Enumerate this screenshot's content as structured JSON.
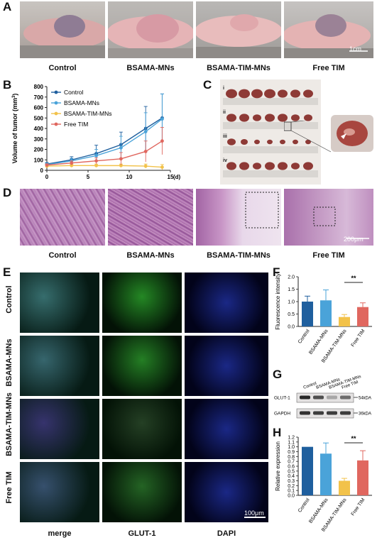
{
  "panels": {
    "A": "A",
    "B": "B",
    "C": "C",
    "D": "D",
    "E": "E",
    "F": "F",
    "G": "G",
    "H": "H"
  },
  "panel_a": {
    "captions": [
      "Control",
      "BSAMA-MNs",
      "BSAMA-TIM-MNs",
      "Free TIM"
    ],
    "scale_bar": "1cm"
  },
  "panel_b": {
    "ylabel_main": "Volume of tumor (mm",
    "ylabel_sup": "3",
    "ylabel_end": ")",
    "x_unit": "(d)"
  },
  "panel_c": {
    "row_labels": [
      "i",
      "ii",
      "iii",
      "iv"
    ]
  },
  "panel_d": {
    "captions": [
      "Control",
      "BSAMA-MNs",
      "BSAMA-TIM-MNs",
      "Free TIM"
    ],
    "scale_bar": "200μm"
  },
  "panel_e": {
    "row_labels": [
      "Control",
      "BSAMA-MNs",
      "BSAMA-TIM-MNs",
      "Free TIM"
    ],
    "col_labels": [
      "merge",
      "GLUT-1",
      "DAPI"
    ],
    "scale_bar": "100μm"
  },
  "panel_g": {
    "lanes": [
      "Control",
      "BSAMA-MNs",
      "BSAMA-TIM-MNs",
      "Free TIM"
    ],
    "bands": [
      "GLUT-1",
      "GAPDH"
    ],
    "sizes": [
      "54kDA",
      "36kDA"
    ]
  },
  "colors": {
    "control": "#1f5f9e",
    "bsama": "#4aa3d9",
    "bsama_tim": "#f2c24a",
    "free_tim": "#e0675f"
  },
  "chart_data": [
    {
      "type": "line",
      "panel": "B",
      "xlabel": "",
      "ylabel": "Volume of tumor (mm3)",
      "xlim": [
        0,
        15
      ],
      "ylim": [
        0,
        800
      ],
      "xticks": [
        0,
        5,
        10,
        15
      ],
      "yticks": [
        0,
        100,
        200,
        300,
        400,
        500,
        600,
        700,
        800
      ],
      "x": [
        0,
        3,
        6,
        9,
        12,
        14
      ],
      "series": [
        {
          "name": "Control",
          "color": "#1f5f9e",
          "values": [
            60,
            100,
            160,
            245,
            400,
            500
          ],
          "err": [
            15,
            30,
            80,
            120,
            210,
            230
          ]
        },
        {
          "name": "BSAMA-MNs",
          "color": "#4aa3d9",
          "values": [
            55,
            90,
            140,
            215,
            370,
            490
          ],
          "err": [
            15,
            25,
            60,
            110,
            180,
            240
          ]
        },
        {
          "name": "BSAMA-TIM-MNs",
          "color": "#f2c24a",
          "values": [
            40,
            45,
            45,
            45,
            40,
            30
          ],
          "err": [
            10,
            12,
            15,
            15,
            20,
            25
          ]
        },
        {
          "name": "Free TIM",
          "color": "#e0675f",
          "values": [
            50,
            70,
            90,
            110,
            180,
            280
          ],
          "err": [
            12,
            20,
            30,
            60,
            100,
            130
          ]
        }
      ],
      "legend": "top-left"
    },
    {
      "type": "bar",
      "panel": "F",
      "categories": [
        "Control",
        "BSAMA-MNs",
        "BSAMA-TIM-MNs",
        "Free TIM"
      ],
      "values": [
        1.0,
        1.05,
        0.38,
        0.78
      ],
      "err": [
        0.22,
        0.42,
        0.1,
        0.17
      ],
      "colors": [
        "#1f5f9e",
        "#4aa3d9",
        "#f2c24a",
        "#e0675f"
      ],
      "xlabel": "",
      "ylabel": "Fluorescence intensity",
      "ylim": [
        0,
        2.0
      ],
      "yticks": [
        0.0,
        0.5,
        1.0,
        1.5,
        2.0
      ],
      "significance": "**"
    },
    {
      "type": "bar",
      "panel": "H",
      "categories": [
        "Control",
        "BSAMA-MNs",
        "BSAMA-TIM-MNs",
        "Free TIM"
      ],
      "values": [
        1.0,
        0.86,
        0.3,
        0.72
      ],
      "err": [
        0.0,
        0.22,
        0.05,
        0.2
      ],
      "colors": [
        "#1f5f9e",
        "#4aa3d9",
        "#f2c24a",
        "#e0675f"
      ],
      "xlabel": "",
      "ylabel": "Relative expression",
      "ylim": [
        0,
        1.2
      ],
      "yticks": [
        0.0,
        0.1,
        0.2,
        0.3,
        0.4,
        0.5,
        0.6,
        0.7,
        0.8,
        0.9,
        1.0,
        1.1,
        1.2
      ],
      "significance": "**"
    }
  ]
}
